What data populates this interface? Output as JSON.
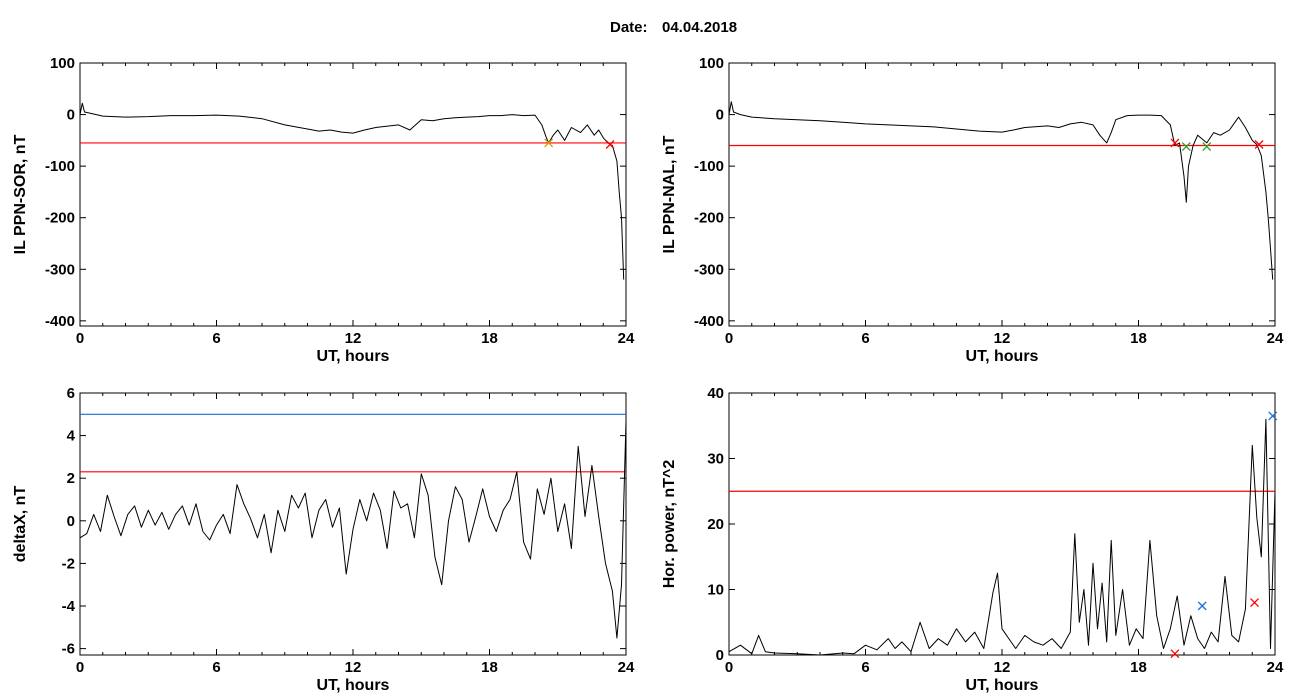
{
  "header": {
    "date_label": "Date:",
    "date_value": "04.04.2018"
  },
  "colors": {
    "line": "#000000",
    "threshold_red": "#ff0000",
    "threshold_blue": "#1e6fd0",
    "spike_blue": "#1e6fd0",
    "marker_red": "#e02020",
    "marker_green": "#2ca02c",
    "marker_orange": "#d0a000"
  },
  "chart_data": [
    {
      "type": "line",
      "id": "il-sor",
      "xlabel": "UT, hours",
      "ylabel": "IL PPN-SOR, nT",
      "xlim": [
        0,
        24
      ],
      "ylim": [
        -410,
        100
      ],
      "xticks": [
        0,
        6,
        12,
        18,
        24
      ],
      "yticks": [
        -400,
        -300,
        -200,
        -100,
        0,
        100
      ],
      "thresholds": [
        {
          "y": -55,
          "color": "red"
        }
      ],
      "series": [
        {
          "x": [
            0,
            0.1,
            0.2,
            0.5,
            1,
            2,
            3,
            4,
            5,
            6,
            7,
            8,
            9,
            10,
            10.5,
            11,
            11.5,
            12,
            12.5,
            13,
            14,
            14.5,
            15,
            15.5,
            16,
            16.5,
            17,
            17.5,
            18,
            18.5,
            19,
            19.5,
            20,
            20.3,
            20.5,
            20.6,
            20.8,
            21,
            21.3,
            21.6,
            22,
            22.3,
            22.6,
            22.8,
            23,
            23.2,
            23.4,
            23.6,
            23.7,
            23.8,
            23.9
          ],
          "y": [
            0,
            22,
            5,
            2,
            -3,
            -5,
            -4,
            -2,
            -2,
            -1,
            -3,
            -8,
            -20,
            -28,
            -32,
            -30,
            -34,
            -36,
            -30,
            -25,
            -20,
            -30,
            -10,
            -12,
            -8,
            -6,
            -5,
            -4,
            -2,
            -2,
            0,
            -2,
            -1,
            -20,
            -45,
            -55,
            -40,
            -30,
            -50,
            -25,
            -35,
            -20,
            -40,
            -30,
            -45,
            -55,
            -60,
            -90,
            -150,
            -200,
            -320
          ]
        }
      ],
      "markers": [
        {
          "x": 20.6,
          "y": -55,
          "shape": "x",
          "color": "orange"
        },
        {
          "x": 23.3,
          "y": -58,
          "shape": "x",
          "color": "red"
        }
      ]
    },
    {
      "type": "line",
      "id": "il-nal",
      "xlabel": "UT, hours",
      "ylabel": "IL PPN-NAL, nT",
      "xlim": [
        0,
        24
      ],
      "ylim": [
        -410,
        100
      ],
      "xticks": [
        0,
        6,
        12,
        18,
        24
      ],
      "yticks": [
        -400,
        -300,
        -200,
        -100,
        0,
        100
      ],
      "thresholds": [
        {
          "y": -60,
          "color": "red"
        }
      ],
      "series": [
        {
          "x": [
            0,
            0.1,
            0.2,
            0.5,
            1,
            2,
            3,
            4,
            5,
            6,
            7,
            8,
            9,
            10,
            11,
            12,
            12.5,
            13,
            14,
            14.5,
            15,
            15.5,
            16,
            16.3,
            16.6,
            16.8,
            17,
            17.5,
            18,
            18.5,
            19,
            19.4,
            19.6,
            19.8,
            20,
            20.1,
            20.2,
            20.4,
            20.6,
            21,
            21.3,
            21.6,
            22,
            22.4,
            22.7,
            23,
            23.2,
            23.4,
            23.6,
            23.7,
            23.8,
            23.9
          ],
          "y": [
            0,
            25,
            5,
            0,
            -5,
            -8,
            -10,
            -12,
            -15,
            -18,
            -20,
            -22,
            -24,
            -28,
            -32,
            -34,
            -30,
            -25,
            -22,
            -25,
            -18,
            -15,
            -20,
            -40,
            -55,
            -35,
            -10,
            -2,
            -1,
            -1,
            -2,
            -20,
            -60,
            -55,
            -120,
            -170,
            -100,
            -60,
            -40,
            -55,
            -35,
            -40,
            -30,
            -5,
            -25,
            -50,
            -58,
            -80,
            -150,
            -200,
            -260,
            -320
          ]
        }
      ],
      "markers": [
        {
          "x": 19.6,
          "y": -55,
          "shape": "x",
          "color": "red"
        },
        {
          "x": 20.1,
          "y": -62,
          "shape": "x",
          "color": "green"
        },
        {
          "x": 21.0,
          "y": -62,
          "shape": "x",
          "color": "green"
        },
        {
          "x": 23.3,
          "y": -58,
          "shape": "x",
          "color": "red"
        }
      ]
    },
    {
      "type": "line",
      "id": "deltax",
      "xlabel": "UT, hours",
      "ylabel": "deltaX, nT",
      "xlim": [
        0,
        24
      ],
      "ylim": [
        -6.3,
        6
      ],
      "xticks": [
        0,
        6,
        12,
        18,
        24
      ],
      "yticks": [
        -6,
        -4,
        -2,
        0,
        2,
        4,
        6
      ],
      "thresholds": [
        {
          "y": 5.0,
          "color": "blue"
        },
        {
          "y": 2.3,
          "color": "red"
        }
      ],
      "series": [
        {
          "x": [
            0,
            0.3,
            0.6,
            0.9,
            1.2,
            1.5,
            1.8,
            2.1,
            2.4,
            2.7,
            3.0,
            3.3,
            3.6,
            3.9,
            4.2,
            4.5,
            4.8,
            5.1,
            5.4,
            5.7,
            6.0,
            6.3,
            6.6,
            6.9,
            7.2,
            7.5,
            7.8,
            8.1,
            8.4,
            8.7,
            9.0,
            9.3,
            9.6,
            9.9,
            10.2,
            10.5,
            10.8,
            11.1,
            11.4,
            11.7,
            12.0,
            12.3,
            12.6,
            12.9,
            13.2,
            13.5,
            13.8,
            14.1,
            14.4,
            14.7,
            15.0,
            15.3,
            15.6,
            15.9,
            16.2,
            16.5,
            16.8,
            17.1,
            17.4,
            17.7,
            18.0,
            18.3,
            18.6,
            18.9,
            19.2,
            19.5,
            19.8,
            20.1,
            20.4,
            20.7,
            21.0,
            21.3,
            21.6,
            21.9,
            22.2,
            22.5,
            22.8,
            23.1,
            23.4,
            23.6,
            23.8,
            24.0
          ],
          "y": [
            -0.8,
            -0.6,
            0.3,
            -0.5,
            1.2,
            0.2,
            -0.7,
            0.3,
            0.7,
            -0.3,
            0.5,
            -0.2,
            0.4,
            -0.4,
            0.3,
            0.7,
            -0.2,
            0.8,
            -0.5,
            -0.9,
            -0.2,
            0.3,
            -0.6,
            1.7,
            0.8,
            0.1,
            -0.8,
            0.3,
            -1.5,
            0.5,
            -0.5,
            1.2,
            0.6,
            1.3,
            -0.8,
            0.5,
            1.0,
            -0.3,
            0.6,
            -2.5,
            -0.4,
            1.0,
            0.0,
            1.3,
            0.5,
            -1.3,
            1.4,
            0.6,
            0.8,
            -0.8,
            2.2,
            1.2,
            -1.7,
            -3.0,
            0.0,
            1.6,
            1.0,
            -1.0,
            0.2,
            1.5,
            0.2,
            -0.5,
            0.5,
            1.0,
            2.3,
            -1.0,
            -1.8,
            1.5,
            0.3,
            2.0,
            -0.5,
            0.8,
            -1.3,
            3.5,
            0.2,
            2.6,
            0.2,
            -2.0,
            -3.3,
            -5.5,
            -3.0,
            4.7
          ]
        }
      ],
      "markers": []
    },
    {
      "type": "line",
      "id": "hor-power",
      "xlabel": "UT, hours",
      "ylabel": "Hor. power, nT^2",
      "xlim": [
        0,
        24
      ],
      "ylim": [
        0,
        40
      ],
      "xticks": [
        0,
        6,
        12,
        18,
        24
      ],
      "yticks": [
        0,
        10,
        20,
        30,
        40
      ],
      "thresholds": [
        {
          "y": 25,
          "color": "red"
        }
      ],
      "series": [
        {
          "x": [
            0,
            0.5,
            1.0,
            1.3,
            1.6,
            2.0,
            3.0,
            4.0,
            5.0,
            5.5,
            6.0,
            6.5,
            7.0,
            7.3,
            7.6,
            8.0,
            8.4,
            8.8,
            9.2,
            9.6,
            10.0,
            10.4,
            10.8,
            11.2,
            11.6,
            11.8,
            12.0,
            12.3,
            12.6,
            13.0,
            13.4,
            13.8,
            14.2,
            14.6,
            15.0,
            15.2,
            15.4,
            15.6,
            15.8,
            16.0,
            16.2,
            16.4,
            16.6,
            16.8,
            17.0,
            17.3,
            17.6,
            17.9,
            18.2,
            18.5,
            18.8,
            19.1,
            19.4,
            19.7,
            20.0,
            20.3,
            20.6,
            20.9,
            21.2,
            21.5,
            21.8,
            22.1,
            22.4,
            22.7,
            23.0,
            23.2,
            23.4,
            23.6,
            23.8,
            24.0
          ],
          "y": [
            0.5,
            1.5,
            0.2,
            3.0,
            0.5,
            0.3,
            0.2,
            0.0,
            0.3,
            0.2,
            1.5,
            0.8,
            2.5,
            1.0,
            2.0,
            0.5,
            5.0,
            1.0,
            2.5,
            1.5,
            4.0,
            2.0,
            3.5,
            1.0,
            9.5,
            12.5,
            4.0,
            2.5,
            1.0,
            3.0,
            2.0,
            1.5,
            2.5,
            1.0,
            3.5,
            18.5,
            5.0,
            10.0,
            1.5,
            14.0,
            4.0,
            11.0,
            2.0,
            17.5,
            3.0,
            10.0,
            1.5,
            4.0,
            2.5,
            17.5,
            6.0,
            1.0,
            4.0,
            9.0,
            1.5,
            6.0,
            2.5,
            1.0,
            3.5,
            2.0,
            12.0,
            3.0,
            2.0,
            7.0,
            32.0,
            21.0,
            15.0,
            36.0,
            1.0,
            25.0
          ]
        }
      ],
      "markers": [
        {
          "x": 19.6,
          "y": 0.2,
          "shape": "x",
          "color": "red"
        },
        {
          "x": 20.8,
          "y": 7.5,
          "shape": "x",
          "color": "blue"
        },
        {
          "x": 23.1,
          "y": 8.0,
          "shape": "x",
          "color": "red"
        },
        {
          "x": 23.9,
          "y": 36.5,
          "shape": "x",
          "color": "blue"
        }
      ]
    }
  ]
}
